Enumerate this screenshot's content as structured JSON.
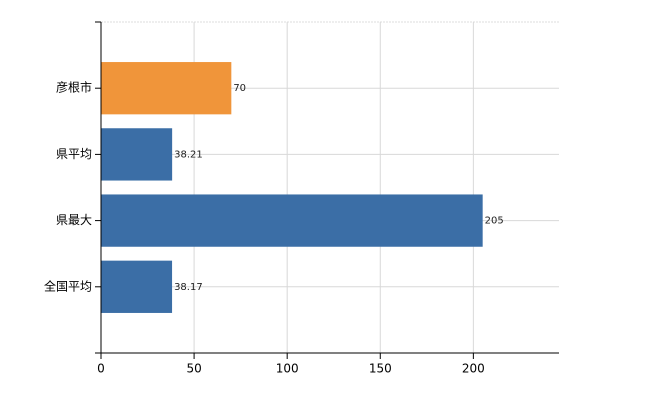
{
  "chart_data": {
    "type": "bar",
    "orientation": "horizontal",
    "categories": [
      "彦根市",
      "県平均",
      "県最大",
      "全国平均"
    ],
    "values": [
      70,
      38.21,
      205,
      38.17
    ],
    "colors": [
      "#f0953a",
      "#3b6ea6",
      "#3b6ea6",
      "#3b6ea6"
    ],
    "xlim": [
      0,
      246
    ],
    "xticks": [
      0,
      50,
      100,
      150,
      200
    ],
    "grid": true
  }
}
